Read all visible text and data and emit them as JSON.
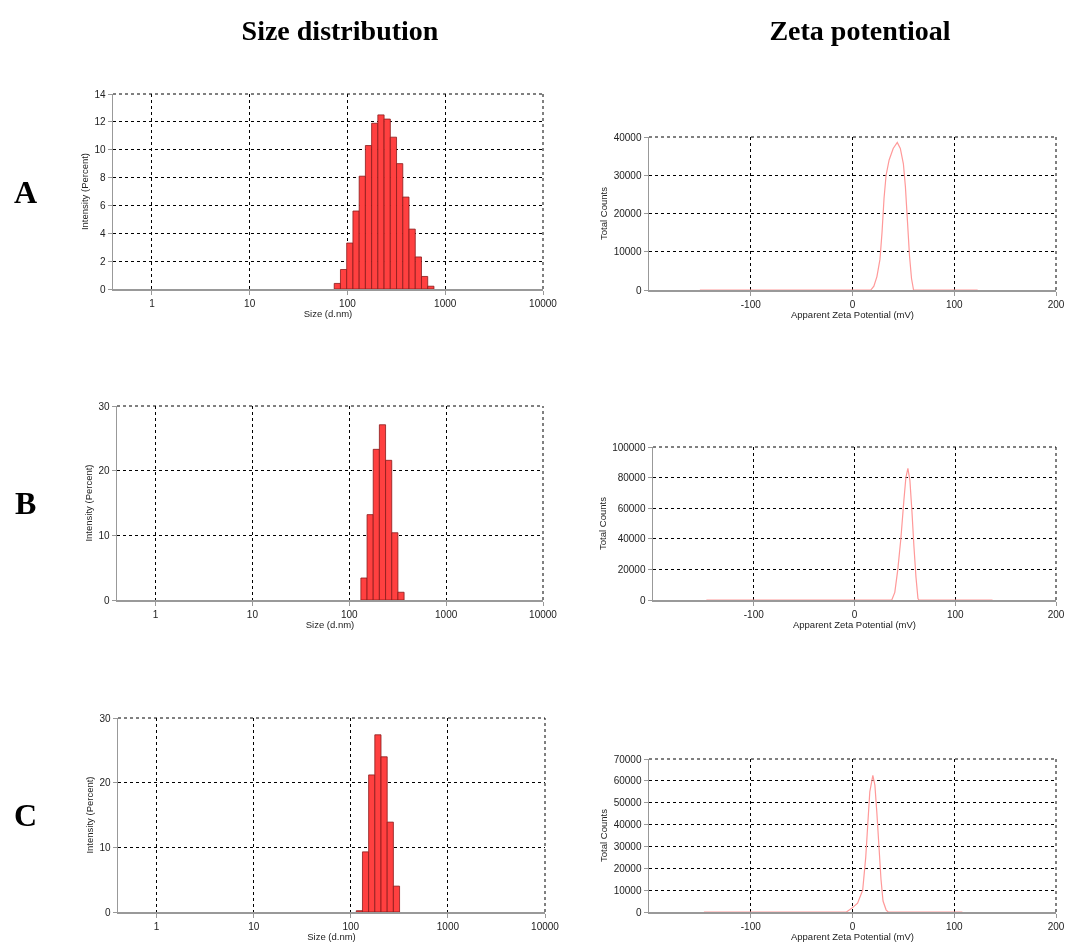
{
  "chart_data": [
    {
      "type": "histogram",
      "title": "Size distribution",
      "annotations": [
        "A"
      ],
      "xlabel": "Size (d.nm)",
      "ylabel": "Intensity (Percent)",
      "log": "x",
      "grid": true,
      "color": "#ff4040",
      "bins": [
        73.24,
        84.82,
        98.23,
        113.8,
        131.8,
        152.6,
        176.7,
        204.6,
        237.0,
        274.4,
        317.8,
        368.1,
        426.2,
        493.6,
        571.7,
        662.0,
        766.7
      ],
      "values": [
        0.4,
        1.4,
        3.3,
        5.6,
        8.1,
        10.3,
        11.9,
        12.5,
        12.2,
        10.9,
        9.0,
        6.6,
        4.3,
        2.3,
        0.9,
        0.2
      ],
      "xlim": [
        0.4,
        10000
      ],
      "xticks": [
        1,
        10,
        100,
        1000,
        10000
      ],
      "ylim": [
        0,
        14
      ],
      "yticks": [
        0,
        2,
        4,
        6,
        8,
        10,
        12,
        14
      ]
    },
    {
      "type": "line",
      "title": "Zeta potentioal",
      "xlabel": "Apparent Zeta Potential (mV)",
      "ylabel": "Total Counts",
      "grid": true,
      "color": "#ff9999",
      "x": [
        -150,
        18,
        21,
        24,
        27,
        29,
        31,
        33,
        36,
        40,
        44,
        47,
        50,
        52,
        54,
        56,
        58,
        60,
        123
      ],
      "values": [
        0,
        0,
        1000,
        3500,
        8000,
        15000,
        24000,
        30000,
        34000,
        37000,
        38600,
        37000,
        33000,
        27000,
        18000,
        9000,
        3000,
        0,
        0
      ],
      "xlim": [
        -200,
        200
      ],
      "xticks": [
        -100,
        0,
        100,
        200
      ],
      "ylim": [
        0,
        40000
      ],
      "yticks": [
        0,
        10000,
        20000,
        30000,
        40000
      ]
    },
    {
      "type": "histogram",
      "annotations": [
        "B"
      ],
      "xlabel": "Size (d.nm)",
      "ylabel": "Intensity (Percent)",
      "log": "x",
      "grid": true,
      "color": "#ff4040",
      "bins": [
        131.8,
        152.6,
        176.7,
        204.6,
        237.0,
        274.4,
        317.8,
        368.1
      ],
      "values": [
        3.4,
        13.2,
        23.3,
        27.1,
        21.6,
        10.4,
        1.2
      ],
      "xlim": [
        0.4,
        10000
      ],
      "xticks": [
        1,
        10,
        100,
        1000,
        10000
      ],
      "ylim": [
        0,
        30
      ],
      "yticks": [
        0,
        10,
        20,
        30
      ]
    },
    {
      "type": "line",
      "xlabel": "Apparent Zeta Potential (mV)",
      "ylabel": "Total Counts",
      "grid": true,
      "color": "#ff9999",
      "x": [
        -147,
        37,
        40,
        43,
        46,
        49,
        51,
        53,
        55,
        57,
        59,
        61,
        63,
        64,
        137
      ],
      "values": [
        0,
        0,
        5000,
        20000,
        40000,
        65000,
        80000,
        86000,
        78000,
        58000,
        35000,
        15000,
        1000,
        0,
        0
      ],
      "xlim": [
        -200,
        200
      ],
      "xticks": [
        -100,
        0,
        100,
        200
      ],
      "ylim": [
        0,
        100000
      ],
      "yticks": [
        0,
        20000,
        40000,
        60000,
        80000,
        100000
      ]
    },
    {
      "type": "histogram",
      "annotations": [
        "C"
      ],
      "xlabel": "Size (d.nm)",
      "ylabel": "Intensity (Percent)",
      "log": "x",
      "grid": true,
      "color": "#ff4040",
      "bins": [
        113.8,
        131.8,
        152.6,
        176.7,
        204.6,
        237.0,
        274.4,
        317.8
      ],
      "values": [
        0.2,
        9.3,
        21.2,
        27.4,
        24.0,
        13.9,
        4.0
      ],
      "xlim": [
        0.4,
        10000
      ],
      "xticks": [
        1,
        10,
        100,
        1000,
        10000
      ],
      "ylim": [
        0,
        30
      ],
      "yticks": [
        0,
        10,
        20,
        30
      ]
    },
    {
      "type": "line",
      "xlabel": "Apparent Zeta Potential (mV)",
      "ylabel": "Total Counts",
      "grid": true,
      "color": "#ff9999",
      "x": [
        -146,
        -6,
        0,
        5,
        10,
        13,
        15,
        17,
        20,
        22,
        24,
        26,
        28,
        30,
        33,
        35,
        108
      ],
      "values": [
        0,
        0,
        2000,
        4000,
        10000,
        25000,
        40000,
        55000,
        62500,
        58000,
        45000,
        30000,
        15000,
        5000,
        1000,
        0,
        0
      ],
      "xlim": [
        -200,
        200
      ],
      "xticks": [
        -100,
        0,
        100,
        200
      ],
      "ylim": [
        0,
        70000
      ],
      "yticks": [
        0,
        10000,
        20000,
        30000,
        40000,
        50000,
        60000,
        70000
      ]
    }
  ]
}
